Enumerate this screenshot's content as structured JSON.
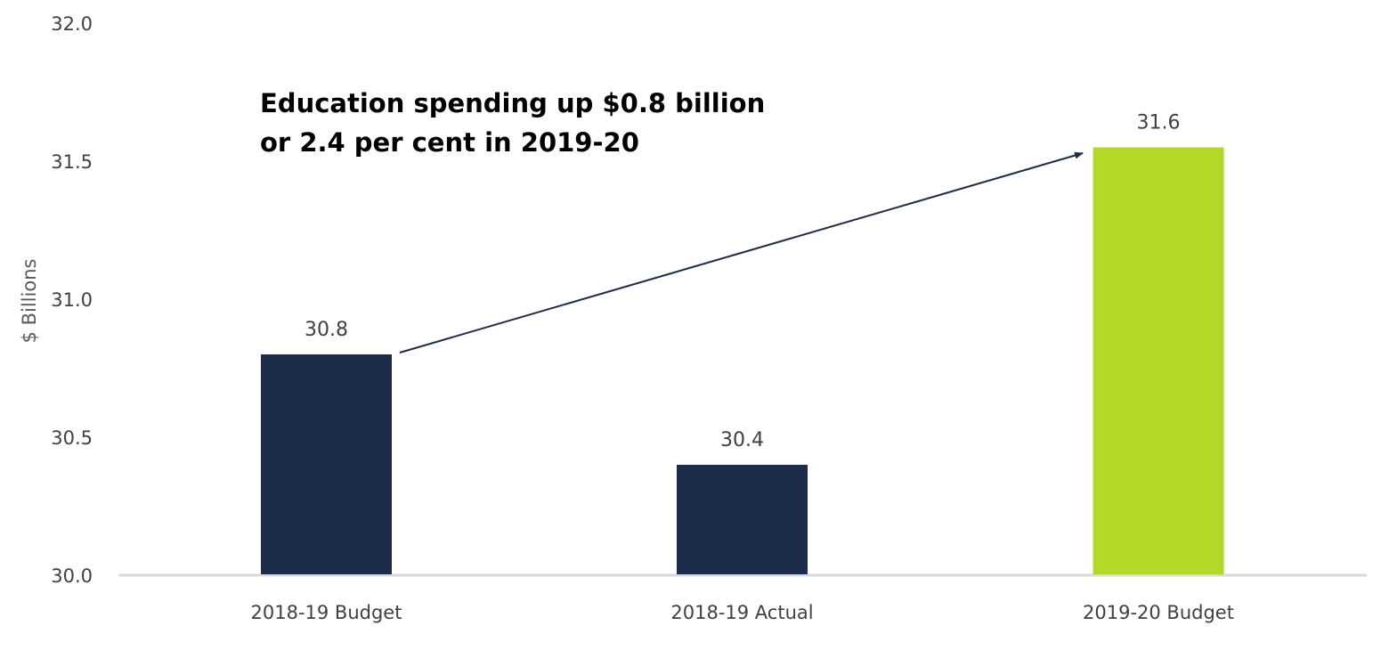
{
  "chart_data": {
    "type": "bar",
    "title": "",
    "xlabel": "",
    "ylabel": "$ Billions",
    "ylim": [
      30.0,
      32.0
    ],
    "yticks": [
      "30.0",
      "30.5",
      "31.0",
      "31.5",
      "32.0"
    ],
    "grid": false,
    "categories": [
      "2018-19 Budget",
      "2018-19 Actual",
      "2019-20 Budget"
    ],
    "values": [
      30.8,
      30.4,
      31.55
    ],
    "data_labels": [
      "30.8",
      "30.4",
      "31.6"
    ],
    "colors": [
      "#1d2c4a",
      "#1d2c4a",
      "#b3d928"
    ],
    "annotation": {
      "lines": [
        "Education spending up $0.8 billion",
        "or 2.4 per cent in 2019-20"
      ],
      "arrow_from_category": "2018-19 Budget",
      "arrow_to_category": "2019-20 Budget",
      "arrow_color": "#1d2c4a"
    },
    "axis_color": "#d9d9d9"
  }
}
